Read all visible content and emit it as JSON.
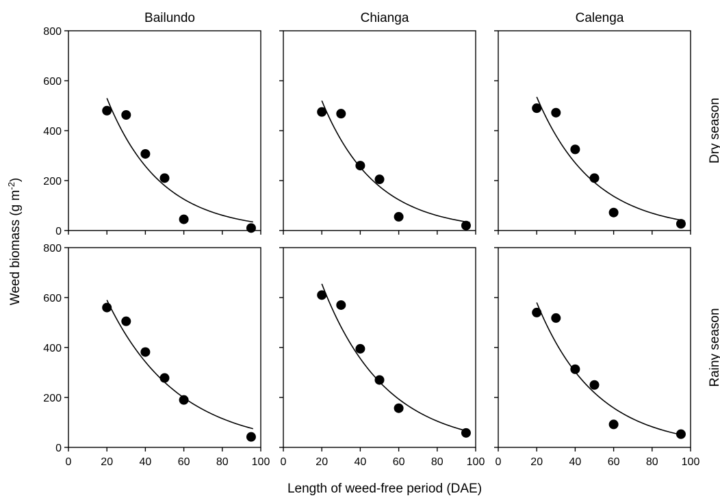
{
  "chart_data": {
    "type": "scatter",
    "xlabel": "Length of weed-free period (DAE)",
    "ylabel_main": "Weed biomass (g m",
    "ylabel_sup": "-2",
    "ylabel_end": ")",
    "xlim": [
      0,
      100
    ],
    "ylim": [
      0,
      800
    ],
    "xticks": [
      0,
      20,
      40,
      60,
      80,
      100
    ],
    "yticks": [
      0,
      200,
      400,
      600,
      800
    ],
    "grid": false,
    "columns": [
      "Bailundo",
      "Chianga",
      "Calenga"
    ],
    "rows": [
      "Dry season",
      "Rainy season"
    ],
    "panels": [
      {
        "site": "Bailundo",
        "season": "Dry season",
        "x": [
          20,
          30,
          40,
          50,
          60,
          95
        ],
        "y": [
          480,
          463,
          307,
          210,
          45,
          10
        ],
        "fit": {
          "type": "exponential",
          "x_range": [
            20,
            96
          ],
          "start": 530,
          "k": 0.036
        }
      },
      {
        "site": "Chianga",
        "season": "Dry season",
        "x": [
          20,
          30,
          40,
          50,
          60,
          95
        ],
        "y": [
          475,
          468,
          260,
          205,
          55,
          20
        ],
        "fit": {
          "type": "exponential",
          "x_range": [
            20,
            97
          ],
          "start": 520,
          "k": 0.036
        }
      },
      {
        "site": "Calenga",
        "season": "Dry season",
        "x": [
          20,
          30,
          40,
          50,
          60,
          95
        ],
        "y": [
          490,
          472,
          325,
          210,
          72,
          27
        ],
        "fit": {
          "type": "exponential",
          "x_range": [
            20,
            97
          ],
          "start": 535,
          "k": 0.034
        }
      },
      {
        "site": "Bailundo",
        "season": "Rainy season",
        "x": [
          20,
          30,
          40,
          50,
          60,
          95
        ],
        "y": [
          560,
          505,
          382,
          278,
          190,
          42
        ],
        "fit": {
          "type": "exponential",
          "x_range": [
            20,
            96
          ],
          "start": 590,
          "k": 0.0272
        }
      },
      {
        "site": "Chianga",
        "season": "Rainy season",
        "x": [
          20,
          30,
          40,
          50,
          60,
          95
        ],
        "y": [
          610,
          570,
          395,
          270,
          157,
          58
        ],
        "fit": {
          "type": "exponential",
          "x_range": [
            20,
            97
          ],
          "start": 655,
          "k": 0.0305
        }
      },
      {
        "site": "Calenga",
        "season": "Rainy season",
        "x": [
          20,
          30,
          40,
          50,
          60,
          95
        ],
        "y": [
          540,
          518,
          313,
          250,
          92,
          53
        ],
        "fit": {
          "type": "exponential",
          "x_range": [
            20,
            97
          ],
          "start": 580,
          "k": 0.0325
        }
      }
    ]
  }
}
